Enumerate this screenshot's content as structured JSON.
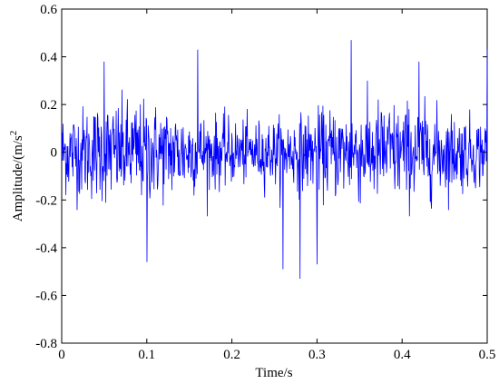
{
  "chart_data": {
    "type": "line",
    "title": "",
    "xlabel": "Time/s",
    "ylabel_main": "Amplitude/(m/s",
    "ylabel_sup": "2",
    "xlim": [
      0,
      0.5
    ],
    "ylim": [
      -0.8,
      0.6
    ],
    "x_ticks": [
      "0",
      "0.1",
      "0.2",
      "0.3",
      "0.4",
      "0.5"
    ],
    "y_ticks": [
      "-0.8",
      "-0.6",
      "-0.4",
      "-0.2",
      "0",
      "0.2",
      "0.4",
      "0.6"
    ],
    "grid": false,
    "series": [
      {
        "color": "#0000ff",
        "x_start": 0,
        "x_end": 0.5,
        "num_samples": 1024,
        "values_note": "vibration signal, approx amplitude envelope ±0.2 with spikes",
        "peaks": [
          {
            "x": 0.05,
            "y": 0.38
          },
          {
            "x": 0.16,
            "y": 0.43
          },
          {
            "x": 0.34,
            "y": 0.47
          },
          {
            "x": 0.42,
            "y": 0.38
          },
          {
            "x": 0.5,
            "y": 0.43
          },
          {
            "x": 0.1,
            "y": -0.46
          },
          {
            "x": 0.26,
            "y": -0.49
          },
          {
            "x": 0.28,
            "y": -0.53
          },
          {
            "x": 0.3,
            "y": -0.47
          }
        ]
      }
    ]
  }
}
